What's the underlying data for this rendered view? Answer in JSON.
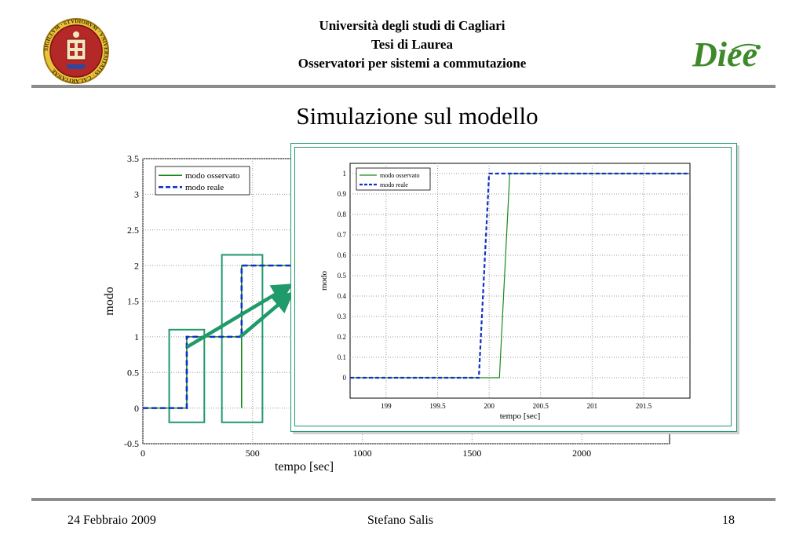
{
  "header": {
    "line1": "Università degli studi di Cagliari",
    "line2": "Tesi di Laurea",
    "line3": "Osservatori per sistemi a commutazione",
    "left_logo": "university-seal",
    "left_logo_text": "SIGILLVM · STVDIORVM · VNIVERSITATIS · CALARITANAE",
    "right_logo": "diee-logo",
    "right_logo_text": "Diee"
  },
  "slide": {
    "title": "Simulazione sul modello"
  },
  "footer": {
    "date": "24 Febbraio 2009",
    "author": "Stefano Salis",
    "page": "18"
  },
  "colors": {
    "observed": "#1a8a1a",
    "real": "#1030c8",
    "highlight": "#1f9a6a",
    "rule": "#8c8c8c"
  },
  "chart_data": [
    {
      "type": "line",
      "xlabel": "tempo [sec]",
      "ylabel": "modo",
      "xlim": [
        0,
        2400
      ],
      "ylim": [
        -0.5,
        3.5
      ],
      "x_ticks": [
        0,
        500,
        1000,
        1500,
        2000
      ],
      "x_tick_labels": [
        "0",
        "500",
        "1000",
        "1500",
        "2000"
      ],
      "y_ticks": [
        -0.5,
        0,
        0.5,
        1,
        1.5,
        2,
        2.5,
        3,
        3.5
      ],
      "y_tick_labels": [
        "-0.5",
        "0",
        "0.5",
        "1",
        "1.5",
        "2",
        "2.5",
        "3",
        "3.5"
      ],
      "grid": true,
      "legend_position": "top-left",
      "series": [
        {
          "name": "modo osservato",
          "style": "solid",
          "color": "#1a8a1a",
          "x": [
            0,
            200,
            200,
            450,
            450,
            450,
            450,
            700
          ],
          "y": [
            0,
            0,
            1,
            1,
            0,
            1,
            2,
            2
          ]
        },
        {
          "name": "modo reale",
          "style": "dashed",
          "color": "#1030c8",
          "x": [
            0,
            200,
            200,
            450,
            450,
            700
          ],
          "y": [
            0,
            0,
            1,
            1,
            2,
            2
          ]
        }
      ],
      "highlight_boxes": [
        {
          "x": [
            120,
            280
          ],
          "y": [
            -0.2,
            1.1
          ]
        },
        {
          "x": [
            360,
            545
          ],
          "y": [
            -0.2,
            2.15
          ]
        }
      ]
    },
    {
      "type": "line",
      "xlabel": "tempo [sec]",
      "ylabel": "modo",
      "xlim": [
        198.65,
        201.95
      ],
      "ylim": [
        -0.1,
        1.05
      ],
      "x_ticks": [
        199,
        199.5,
        200,
        200.5,
        201,
        201.5
      ],
      "x_tick_labels": [
        "199",
        "199.5",
        "200",
        "200.5",
        "201",
        "201.5"
      ],
      "y_ticks": [
        0,
        0.1,
        0.2,
        0.3,
        0.4,
        0.5,
        0.6,
        0.7,
        0.8,
        0.9,
        1
      ],
      "y_tick_labels": [
        "0",
        "0.1",
        "0.2",
        "0.3",
        "0.4",
        "0.5",
        "0.6",
        "0.7",
        "0.8",
        "0.9",
        "1"
      ],
      "grid": true,
      "legend_position": "top-left",
      "series": [
        {
          "name": "modo osservato",
          "style": "solid",
          "color": "#1a8a1a",
          "x": [
            198.65,
            200.1,
            200.2,
            201.95
          ],
          "y": [
            0,
            0,
            1,
            1
          ]
        },
        {
          "name": "modo reale",
          "style": "dashed",
          "color": "#1030c8",
          "x": [
            198.65,
            199.9,
            200.0,
            201.95
          ],
          "y": [
            0,
            0,
            1,
            1
          ]
        }
      ]
    }
  ]
}
